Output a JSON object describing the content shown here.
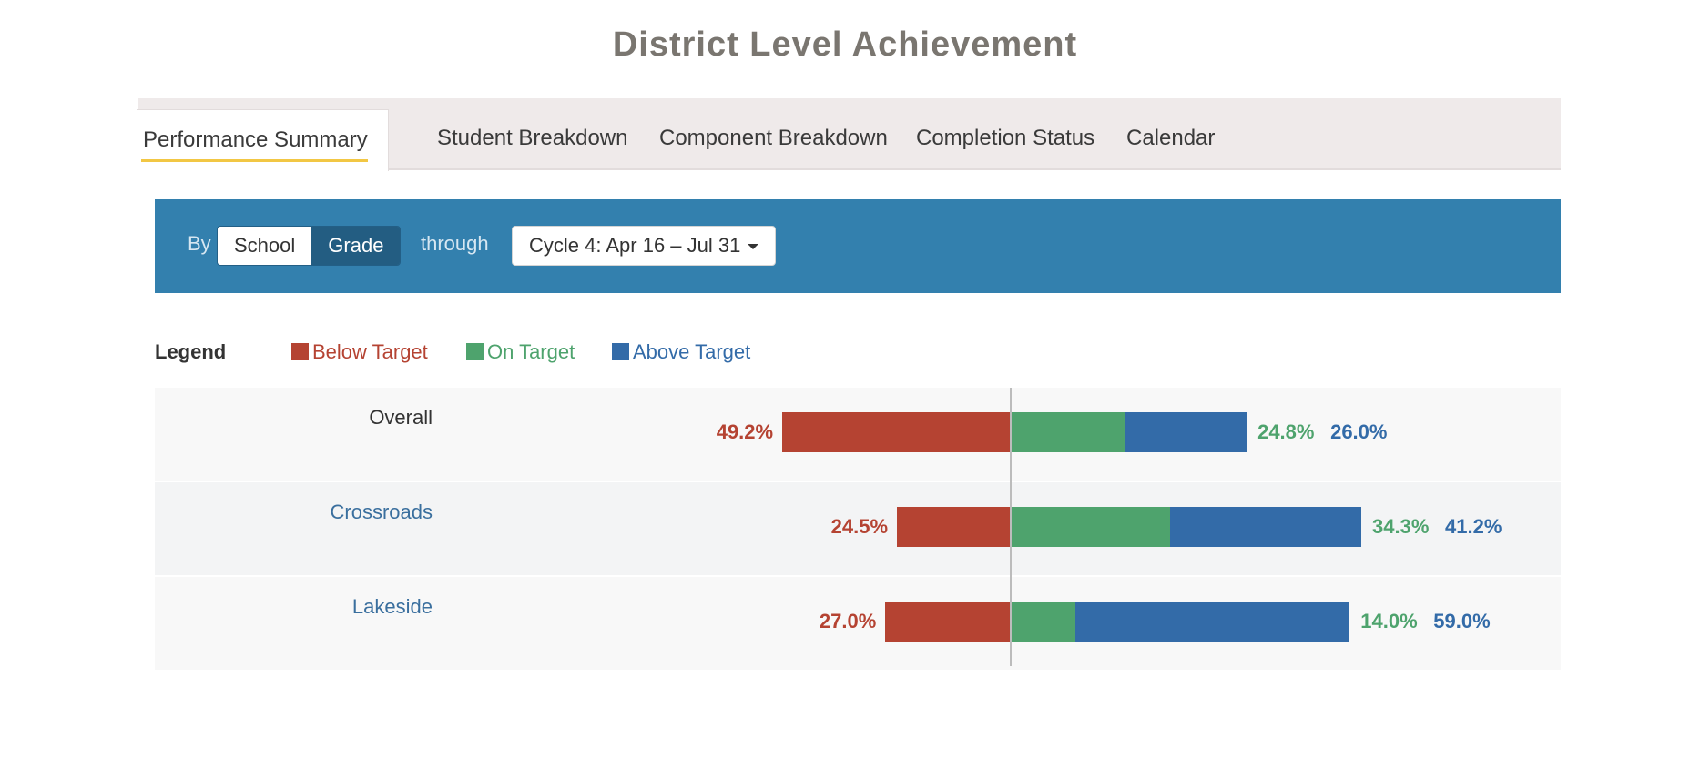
{
  "title": "District Level Achievement",
  "tabs": [
    {
      "label": "Performance Summary",
      "active": true
    },
    {
      "label": "Student Breakdown",
      "active": false
    },
    {
      "label": "Component Breakdown",
      "active": false
    },
    {
      "label": "Completion Status",
      "active": false
    },
    {
      "label": "Calendar",
      "active": false
    }
  ],
  "toolbar": {
    "by_label": "By",
    "toggle": [
      "School",
      "Grade"
    ],
    "selected_toggle": "Grade",
    "through_label": "through",
    "cycle_value": "Cycle 4: Apr 16 – Jul 31"
  },
  "colors": {
    "below": "#b54332",
    "on": "#4ea36d",
    "above": "#336ba8",
    "link": "#3a6f9e"
  },
  "chart_data": {
    "type": "bar",
    "orientation": "horizontal-diverging",
    "legend_title": "Legend",
    "legend": [
      "Below Target",
      "On Target",
      "Above Target"
    ],
    "categories": [
      "Overall",
      "Crossroads",
      "Lakeside"
    ],
    "series": [
      {
        "name": "Below Target",
        "values": [
          49.2,
          24.5,
          27.0
        ],
        "labels": [
          "49.2%",
          "24.5%",
          "27.0%"
        ]
      },
      {
        "name": "On Target",
        "values": [
          24.8,
          34.3,
          14.0
        ],
        "labels": [
          "24.8%",
          "34.3%",
          "14.0%"
        ]
      },
      {
        "name": "Above Target",
        "values": [
          26.0,
          41.2,
          59.0
        ],
        "labels": [
          "26.0%",
          "41.2%",
          "59.0%"
        ]
      }
    ]
  }
}
